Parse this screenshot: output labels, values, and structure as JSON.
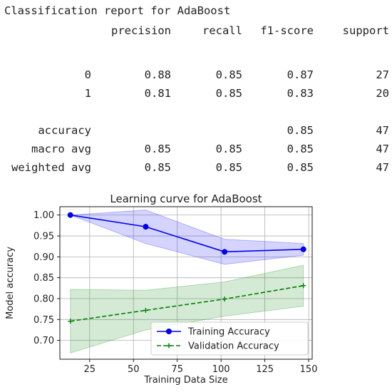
{
  "report": {
    "title": "Classification report for AdaBoost",
    "headers": [
      "precision",
      "recall",
      "f1-score",
      "support"
    ],
    "rows": [
      {
        "label": "0",
        "precision": "0.88",
        "recall": "0.85",
        "f1": "0.87",
        "support": "27"
      },
      {
        "label": "1",
        "precision": "0.81",
        "recall": "0.85",
        "f1": "0.83",
        "support": "20"
      },
      {
        "label": "accuracy",
        "precision": "",
        "recall": "",
        "f1": "0.85",
        "support": "47"
      },
      {
        "label": "macro avg",
        "precision": "0.85",
        "recall": "0.85",
        "f1": "0.85",
        "support": "47"
      },
      {
        "label": "weighted avg",
        "precision": "0.85",
        "recall": "0.85",
        "f1": "0.85",
        "support": "47"
      }
    ]
  },
  "chart_data": {
    "type": "line",
    "title": "Learning curve for AdaBoost",
    "xlabel": "Training Data Size",
    "ylabel": "Model accuracy",
    "xlim": [
      8,
      152
    ],
    "ylim": [
      0.655,
      1.02
    ],
    "xticks": [
      25,
      50,
      75,
      100,
      125,
      150
    ],
    "yticks": [
      0.7,
      0.75,
      0.8,
      0.85,
      0.9,
      0.95,
      1.0
    ],
    "grid": true,
    "legend": "lower-right",
    "series": [
      {
        "name": "Training Accuracy",
        "color": "#0000ee",
        "band_color": "#0000ff",
        "style": "solid",
        "marker": "circle",
        "x": [
          14,
          57,
          102,
          147
        ],
        "y": [
          1.0,
          0.972,
          0.912,
          0.918
        ],
        "lower": [
          1.0,
          0.932,
          0.882,
          0.904
        ],
        "upper": [
          1.0,
          1.012,
          0.942,
          0.932
        ]
      },
      {
        "name": "Validation Accuracy",
        "color": "#008000",
        "band_color": "#008000",
        "style": "dashed",
        "marker": "plus",
        "x": [
          14,
          57,
          102,
          147
        ],
        "y": [
          0.746,
          0.772,
          0.799,
          0.831
        ],
        "lower": [
          0.67,
          0.725,
          0.758,
          0.782
        ],
        "upper": [
          0.822,
          0.82,
          0.84,
          0.88
        ]
      }
    ]
  }
}
